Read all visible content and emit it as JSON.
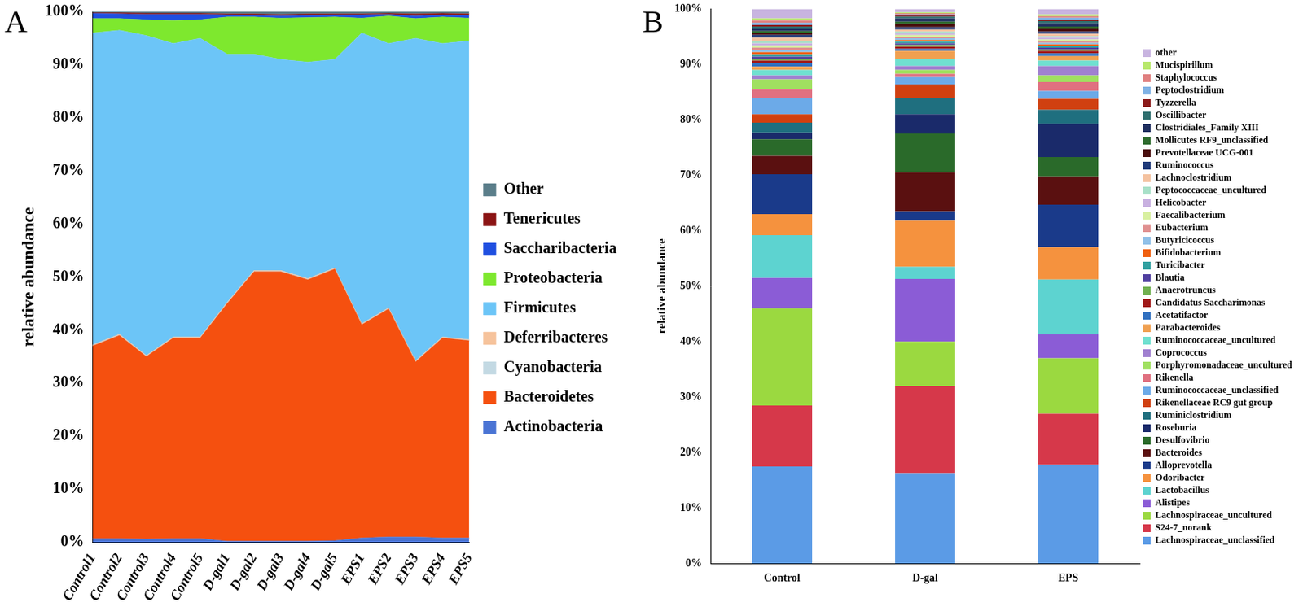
{
  "chart_data": [
    {
      "type": "area",
      "title": "A",
      "y_label": "relative abundance",
      "stacked": true,
      "grid": false,
      "legend": "right",
      "data_labels": false,
      "categories": [
        "Control1",
        "Control2",
        "Control3",
        "Control4",
        "Control5",
        "D-gal1",
        "D-gal2",
        "D-gal3",
        "D-gal4",
        "D-gal5",
        "EPS1",
        "EPS2",
        "EPS3",
        "EPS4",
        "EPS5"
      ],
      "ylim": [
        0,
        100
      ],
      "yticks": [
        {
          "value": 0,
          "label": "0%"
        },
        {
          "value": 10,
          "label": "10%"
        },
        {
          "value": 20,
          "label": "20%"
        },
        {
          "value": 30,
          "label": "30%"
        },
        {
          "value": 40,
          "label": "40%"
        },
        {
          "value": 50,
          "label": "50%"
        },
        {
          "value": 60,
          "label": "60%"
        },
        {
          "value": 70,
          "label": "70%"
        },
        {
          "value": 80,
          "label": "80%"
        },
        {
          "value": 90,
          "label": "90%"
        },
        {
          "value": 100,
          "label": "100%"
        }
      ],
      "series": [
        {
          "name": "Actinobacteria",
          "color": "#4a74d4",
          "values": [
            0.7,
            0.7,
            0.6,
            0.7,
            0.7,
            0.2,
            0.2,
            0.2,
            0.2,
            0.3,
            0.8,
            1.0,
            1.0,
            0.8,
            0.8
          ]
        },
        {
          "name": "Bacteroidetes",
          "color": "#f5500f",
          "values": [
            36.3,
            38.3,
            34.4,
            37.8,
            37.8,
            44.8,
            50.8,
            50.8,
            49.3,
            51.2,
            40.2,
            43.0,
            33.0,
            37.7,
            37.2
          ]
        },
        {
          "name": "Cyanobacteria",
          "color": "#c3d9e3",
          "values": [
            0.1,
            0.1,
            0.1,
            0.1,
            0.1,
            0.1,
            0.1,
            0.1,
            0.1,
            0.1,
            0.1,
            0.1,
            0.1,
            0.1,
            0.1
          ]
        },
        {
          "name": "Deferribacteres",
          "color": "#f6c39c",
          "values": [
            0.1,
            0.1,
            0.1,
            0.1,
            0.1,
            0.1,
            0.1,
            0.1,
            0.1,
            0.1,
            0.1,
            0.1,
            0.1,
            0.1,
            0.1
          ]
        },
        {
          "name": "Firmicutes",
          "color": "#6cc5f7",
          "values": [
            58.8,
            57.3,
            60.3,
            55.3,
            56.3,
            46.8,
            40.8,
            39.8,
            40.8,
            39.3,
            54.8,
            49.8,
            60.8,
            55.3,
            56.3
          ]
        },
        {
          "name": "Proteobacteria",
          "color": "#7ee82e",
          "values": [
            2.7,
            2.2,
            3.0,
            4.3,
            3.5,
            7.0,
            7.0,
            7.8,
            8.4,
            8.0,
            2.8,
            5.2,
            3.7,
            5.0,
            4.3
          ]
        },
        {
          "name": "Saccharibacteria",
          "color": "#1f4fe0",
          "values": [
            1.0,
            0.9,
            1.0,
            1.2,
            1.0,
            0.4,
            0.3,
            0.4,
            0.4,
            0.4,
            0.6,
            0.3,
            0.5,
            0.4,
            0.5
          ]
        },
        {
          "name": "Tenericutes",
          "color": "#8b1414",
          "values": [
            0.1,
            0.2,
            0.2,
            0.2,
            0.2,
            0.2,
            0.3,
            0.3,
            0.3,
            0.2,
            0.2,
            0.2,
            0.4,
            0.3,
            0.3
          ]
        },
        {
          "name": "Other",
          "color": "#5b7e8a",
          "values": [
            0.2,
            0.2,
            0.3,
            0.3,
            0.3,
            0.4,
            0.4,
            0.5,
            0.4,
            0.4,
            0.4,
            0.3,
            0.4,
            0.3,
            0.4
          ]
        }
      ]
    },
    {
      "type": "bar",
      "title": "B",
      "y_label": "relative abundance",
      "stacked": true,
      "grid": false,
      "legend": "right",
      "data_labels": false,
      "categories": [
        "Control",
        "D-gal",
        "EPS"
      ],
      "ylim": [
        0,
        100
      ],
      "yticks": [
        {
          "value": 0,
          "label": "0%"
        },
        {
          "value": 10,
          "label": "10%"
        },
        {
          "value": 20,
          "label": "20%"
        },
        {
          "value": 30,
          "label": "30%"
        },
        {
          "value": 40,
          "label": "40%"
        },
        {
          "value": 50,
          "label": "50%"
        },
        {
          "value": 60,
          "label": "60%"
        },
        {
          "value": 70,
          "label": "70%"
        },
        {
          "value": 80,
          "label": "80%"
        },
        {
          "value": 90,
          "label": "90%"
        },
        {
          "value": 100,
          "label": "100%"
        }
      ],
      "series": [
        {
          "name": "Lachnospiraceae_unclassified",
          "color": "#5b9be6",
          "values": [
            17.5,
            16.3,
            17.8
          ]
        },
        {
          "name": "S24-7_norank",
          "color": "#d6384a",
          "values": [
            11.0,
            15.7,
            9.2
          ]
        },
        {
          "name": "Lachnospiraceae_uncultured",
          "color": "#9bd940",
          "values": [
            17.5,
            8.0,
            10.0
          ]
        },
        {
          "name": "Alistipes",
          "color": "#8b5cd6",
          "values": [
            5.5,
            11.3,
            4.3
          ]
        },
        {
          "name": "Lactobacillus",
          "color": "#5dd3d0",
          "values": [
            7.7,
            2.2,
            9.9
          ]
        },
        {
          "name": "Odoribacter",
          "color": "#f5923e",
          "values": [
            3.8,
            8.3,
            5.8
          ]
        },
        {
          "name": "Alloprevotella",
          "color": "#1a3a8a",
          "values": [
            7.2,
            1.7,
            7.7
          ]
        },
        {
          "name": "Bacteroides",
          "color": "#5a1010",
          "values": [
            3.3,
            7.0,
            5.1
          ]
        },
        {
          "name": "Desulfovibrio",
          "color": "#2a6a2a",
          "values": [
            3.0,
            7.0,
            3.5
          ]
        },
        {
          "name": "Roseburia",
          "color": "#1a2a6a",
          "values": [
            1.2,
            3.5,
            6.0
          ]
        },
        {
          "name": "Ruminiclostridium",
          "color": "#1f6f7f",
          "values": [
            1.8,
            3.0,
            2.5
          ]
        },
        {
          "name": "Rikenellaceae RC9 gut group",
          "color": "#d04010",
          "values": [
            1.5,
            2.4,
            2.0
          ]
        },
        {
          "name": "Ruminococcaceae_unclassified",
          "color": "#6caae8",
          "values": [
            3.0,
            1.3,
            1.4
          ]
        },
        {
          "name": "Rikenella",
          "color": "#e07080",
          "values": [
            1.5,
            0.6,
            1.6
          ]
        },
        {
          "name": "Porphyromonadaceae_uncultured",
          "color": "#a0e060",
          "values": [
            1.8,
            0.7,
            1.2
          ]
        },
        {
          "name": "Coprococcus",
          "color": "#a080d0",
          "values": [
            0.7,
            0.7,
            1.7
          ]
        },
        {
          "name": "Ruminococcaceae_uncultured",
          "color": "#70e0d0",
          "values": [
            1.0,
            1.3,
            1.0
          ]
        },
        {
          "name": "Parabacteroides",
          "color": "#f0a050",
          "values": [
            0.6,
            1.4,
            0.8
          ]
        },
        {
          "name": "Acetatifactor",
          "color": "#3070c0",
          "values": [
            0.6,
            0.4,
            0.5
          ]
        },
        {
          "name": "Candidatus Saccharimonas",
          "color": "#a01818",
          "values": [
            0.5,
            0.4,
            0.4
          ]
        },
        {
          "name": "Anaerotruncus",
          "color": "#70b050",
          "values": [
            0.3,
            0.3,
            0.3
          ]
        },
        {
          "name": "Blautia",
          "color": "#5040a0",
          "values": [
            0.4,
            0.3,
            0.3
          ]
        },
        {
          "name": "Turicibacter",
          "color": "#30a0a0",
          "values": [
            0.4,
            0.3,
            0.3
          ]
        },
        {
          "name": "Bifidobacterium",
          "color": "#f06010",
          "values": [
            0.4,
            0.3,
            0.3
          ]
        },
        {
          "name": "Butyricicoccus",
          "color": "#90c0e8",
          "values": [
            0.4,
            0.3,
            0.3
          ]
        },
        {
          "name": "Eubacterium",
          "color": "#e09090",
          "values": [
            0.4,
            0.3,
            0.3
          ]
        },
        {
          "name": "Faecalibacterium",
          "color": "#d8f0a0",
          "values": [
            0.4,
            0.3,
            0.3
          ]
        },
        {
          "name": "Helicobacter",
          "color": "#c8b0e0",
          "values": [
            0.4,
            0.3,
            0.3
          ]
        },
        {
          "name": "Peptococcaceae_uncultured",
          "color": "#a8e0c8",
          "values": [
            0.4,
            0.3,
            0.3
          ]
        },
        {
          "name": "Lachnoclostridium",
          "color": "#f4c2a0",
          "values": [
            0.6,
            0.4,
            0.4
          ]
        },
        {
          "name": "Ruminococcus",
          "color": "#1f3a7a",
          "values": [
            0.5,
            0.4,
            0.4
          ]
        },
        {
          "name": "Prevotellaceae UCG-001",
          "color": "#4a0f0f",
          "values": [
            0.4,
            0.6,
            0.5
          ]
        },
        {
          "name": "Mollicutes RF9_unclassified",
          "color": "#2e6b2e",
          "values": [
            0.3,
            0.4,
            0.4
          ]
        },
        {
          "name": "Clostridiales_Family XIII",
          "color": "#1f2f5f",
          "values": [
            0.4,
            0.6,
            0.6
          ]
        },
        {
          "name": "Oscillibacter",
          "color": "#2f6f6f",
          "values": [
            0.4,
            0.3,
            0.4
          ]
        },
        {
          "name": "Tyzzerella",
          "color": "#8b1a1a",
          "values": [
            0.3,
            0.2,
            0.3
          ]
        },
        {
          "name": "Peptoclostridium",
          "color": "#7fb2e5",
          "values": [
            0.4,
            0.2,
            0.3
          ]
        },
        {
          "name": "Staphylococcus",
          "color": "#e08080",
          "values": [
            0.4,
            0.2,
            0.3
          ]
        },
        {
          "name": "Mucispirillum",
          "color": "#b8e86c",
          "values": [
            0.4,
            0.2,
            0.3
          ]
        },
        {
          "name": "other",
          "color": "#c8b4e0",
          "values": [
            1.7,
            0.6,
            1.0
          ]
        }
      ]
    }
  ]
}
